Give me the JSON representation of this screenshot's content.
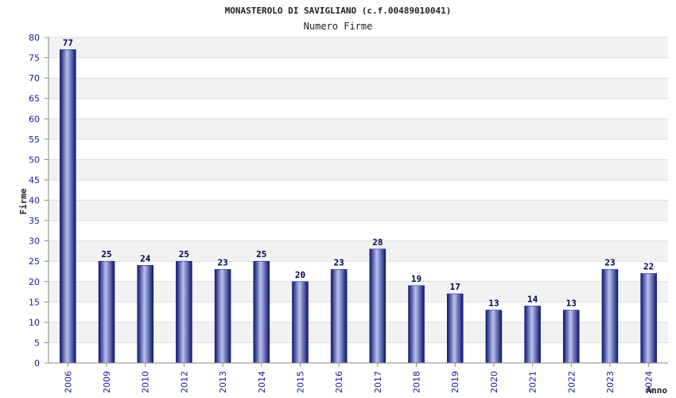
{
  "chart_data": {
    "type": "bar",
    "title": "MONASTEROLO DI SAVIGLIANO (c.f.00489010041)",
    "subtitle": "Numero Firme",
    "xlabel": "Anno",
    "ylabel": "Firme",
    "categories": [
      "2006",
      "2009",
      "2010",
      "2012",
      "2013",
      "2014",
      "2015",
      "2016",
      "2017",
      "2018",
      "2019",
      "2020",
      "2021",
      "2022",
      "2023",
      "2024"
    ],
    "values": [
      77,
      25,
      24,
      25,
      23,
      25,
      20,
      23,
      28,
      19,
      17,
      13,
      14,
      13,
      23,
      22
    ],
    "ylim": [
      0,
      80
    ],
    "yticks": [
      0,
      5,
      10,
      15,
      20,
      25,
      30,
      35,
      40,
      45,
      50,
      55,
      60,
      65,
      70,
      75,
      80
    ],
    "grid": true,
    "bar_color": "#1e2a8c"
  }
}
